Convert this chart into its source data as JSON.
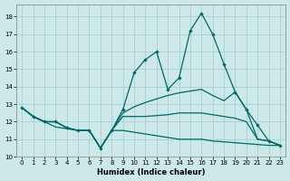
{
  "background_color": "#cce8e8",
  "grid_color": "#aacece",
  "line_color": "#006868",
  "x": [
    0,
    1,
    2,
    3,
    4,
    5,
    6,
    7,
    8,
    9,
    10,
    11,
    12,
    13,
    14,
    15,
    16,
    17,
    18,
    19,
    20,
    21,
    22,
    23
  ],
  "line_peak": [
    12.8,
    12.3,
    12.0,
    12.0,
    11.65,
    11.5,
    11.5,
    10.5,
    11.5,
    12.7,
    14.8,
    15.55,
    16.0,
    13.85,
    14.5,
    17.2,
    18.2,
    17.0,
    15.3,
    13.7,
    12.7,
    11.8,
    10.9,
    10.65
  ],
  "line_upper": [
    12.8,
    12.3,
    12.0,
    12.0,
    11.65,
    11.5,
    11.5,
    10.5,
    11.5,
    12.5,
    12.85,
    13.1,
    13.3,
    13.5,
    13.65,
    13.75,
    13.85,
    13.5,
    13.2,
    13.7,
    12.7,
    11.0,
    10.9,
    10.65
  ],
  "line_mid": [
    12.8,
    12.3,
    12.0,
    12.0,
    11.65,
    11.5,
    11.5,
    10.5,
    11.5,
    12.3,
    12.3,
    12.3,
    12.35,
    12.4,
    12.5,
    12.5,
    12.5,
    12.4,
    12.3,
    12.2,
    12.0,
    11.0,
    10.9,
    10.65
  ],
  "line_lower": [
    12.8,
    12.3,
    12.0,
    11.7,
    11.6,
    11.5,
    11.5,
    10.5,
    11.5,
    11.5,
    11.4,
    11.3,
    11.2,
    11.1,
    11.0,
    11.0,
    11.0,
    10.9,
    10.85,
    10.8,
    10.75,
    10.7,
    10.65,
    10.65
  ],
  "xlim": [
    -0.5,
    23.5
  ],
  "ylim": [
    10,
    18.7
  ],
  "yticks": [
    10,
    11,
    12,
    13,
    14,
    15,
    16,
    17,
    18
  ],
  "xticks": [
    0,
    1,
    2,
    3,
    4,
    5,
    6,
    7,
    8,
    9,
    10,
    11,
    12,
    13,
    14,
    15,
    16,
    17,
    18,
    19,
    20,
    21,
    22,
    23
  ],
  "xlabel": "Humidex (Indice chaleur)"
}
